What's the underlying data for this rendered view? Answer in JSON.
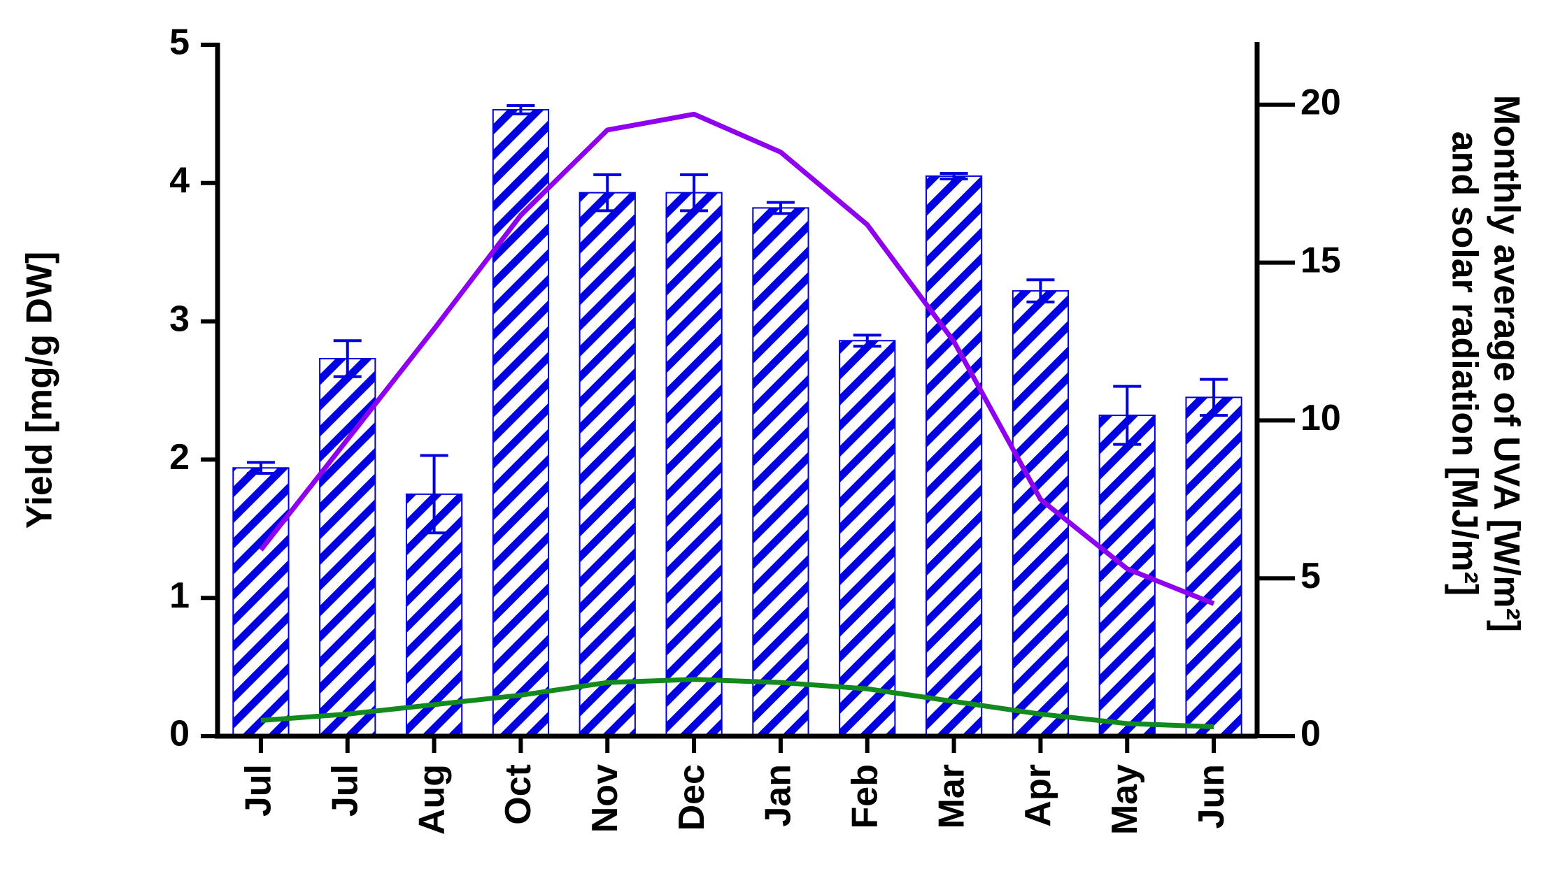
{
  "chart_data": {
    "type": "bar",
    "ylabel": "Yield [mg/g DW]",
    "y2label": [
      "Monthly average of UVA [W/m²]",
      "and solar radiation [MJ/m²]"
    ],
    "categories": [
      "Jul",
      "Jul",
      "Aug",
      "Oct",
      "Nov",
      "Dec",
      "Jan",
      "Feb",
      "Mar",
      "Apr",
      "May",
      "Jun"
    ],
    "series": [
      {
        "type": "bar",
        "color": "#0000e0",
        "values": [
          1.94,
          2.73,
          1.75,
          4.53,
          3.93,
          3.93,
          3.82,
          2.86,
          4.05,
          3.22,
          2.32,
          2.45
        ],
        "errors": [
          0.04,
          0.13,
          0.28,
          0.03,
          0.13,
          0.13,
          0.04,
          0.04,
          0.02,
          0.08,
          0.21,
          0.13
        ]
      },
      {
        "type": "line",
        "axis": "y2",
        "color": "#9000f0",
        "values": [
          5.9,
          9.4,
          12.9,
          16.5,
          19.2,
          19.7,
          18.5,
          16.2,
          12.5,
          7.5,
          5.3,
          4.2
        ]
      },
      {
        "type": "line",
        "axis": "y2",
        "color": "#138a1e",
        "values": [
          0.5,
          0.7,
          1.0,
          1.3,
          1.7,
          1.8,
          1.7,
          1.5,
          1.1,
          0.7,
          0.4,
          0.3
        ]
      }
    ],
    "ylim": [
      0,
      5
    ],
    "yticks": [
      0,
      1,
      2,
      3,
      4,
      5
    ],
    "y2lim": [
      0,
      21.9
    ],
    "y2ticks": [
      0,
      5,
      10,
      15,
      20
    ]
  }
}
